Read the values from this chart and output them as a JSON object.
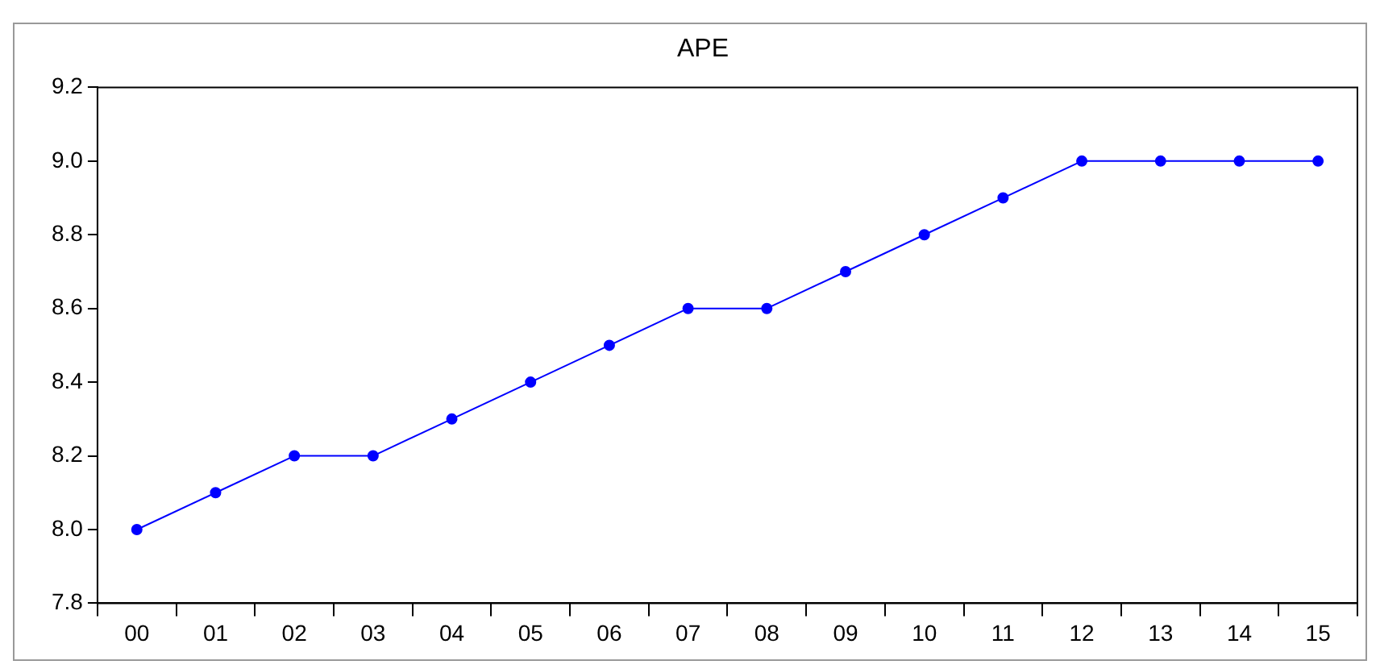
{
  "chart_data": {
    "type": "line",
    "title": "APE",
    "categories": [
      "00",
      "01",
      "02",
      "03",
      "04",
      "05",
      "06",
      "07",
      "08",
      "09",
      "10",
      "11",
      "12",
      "13",
      "14",
      "15"
    ],
    "series": [
      {
        "color": "#0000ff",
        "values": [
          8.0,
          8.1,
          8.2,
          8.2,
          8.3,
          8.4,
          8.5,
          8.6,
          8.6,
          8.7,
          8.8,
          8.9,
          9.0,
          9.0,
          9.0,
          9.0
        ]
      }
    ],
    "ylim": [
      7.8,
      9.2
    ],
    "yticks": [
      {
        "value": 7.8,
        "label": "7.8"
      },
      {
        "value": 8,
        "label": "8.0"
      },
      {
        "value": 8.2,
        "label": "8.2"
      },
      {
        "value": 8.4,
        "label": "8.4"
      },
      {
        "value": 8.6,
        "label": "8.6"
      },
      {
        "value": 8.8,
        "label": "8.8"
      },
      {
        "value": 9,
        "label": "9.0"
      },
      {
        "value": 9.2,
        "label": "9.2"
      }
    ],
    "grid": false,
    "legend": false,
    "marker": "circle",
    "line_style": "solid"
  }
}
